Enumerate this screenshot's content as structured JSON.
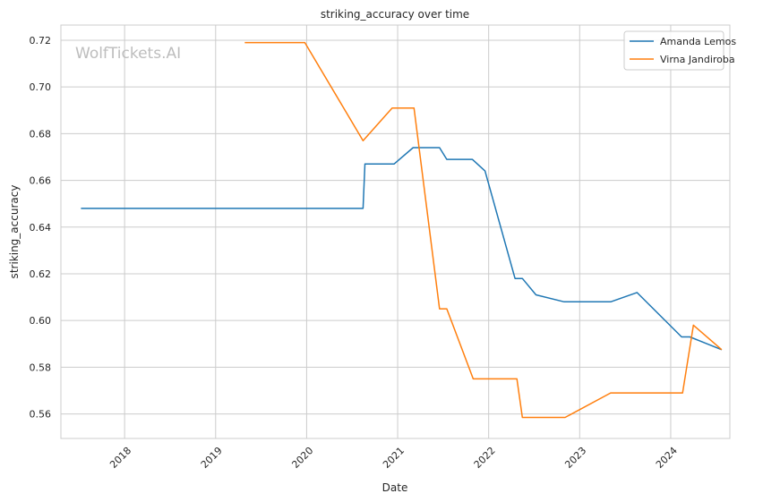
{
  "chart_data": {
    "type": "line",
    "title": "striking_accuracy over time",
    "xlabel": "Date",
    "ylabel": "striking_accuracy",
    "watermark": "WolfTickets.AI",
    "xlim": [
      2017.3,
      2024.65
    ],
    "ylim": [
      0.5495,
      0.7265
    ],
    "x_ticks": [
      2018,
      2019,
      2020,
      2021,
      2022,
      2023,
      2024
    ],
    "x_tick_labels": [
      "2018",
      "2019",
      "2020",
      "2021",
      "2022",
      "2023",
      "2024"
    ],
    "y_ticks": [
      0.56,
      0.58,
      0.6,
      0.62,
      0.64,
      0.66,
      0.68,
      0.7,
      0.72
    ],
    "y_tick_labels": [
      "0.56",
      "0.58",
      "0.60",
      "0.62",
      "0.64",
      "0.66",
      "0.68",
      "0.70",
      "0.72"
    ],
    "grid": true,
    "legend_position": "top-right",
    "series": [
      {
        "name": "Amanda Lemos",
        "color": "#1f77b4",
        "x": [
          2017.52,
          2020.62,
          2020.64,
          2020.96,
          2021.17,
          2021.46,
          2021.54,
          2021.82,
          2021.96,
          2022.29,
          2022.37,
          2022.52,
          2022.83,
          2023.34,
          2023.63,
          2024.12,
          2024.21,
          2024.56
        ],
        "y": [
          0.648,
          0.648,
          0.667,
          0.667,
          0.674,
          0.674,
          0.669,
          0.669,
          0.664,
          0.618,
          0.618,
          0.611,
          0.608,
          0.608,
          0.612,
          0.593,
          0.593,
          0.5875
        ]
      },
      {
        "name": "Virna Jandiroba",
        "color": "#ff7f0e",
        "x": [
          2019.32,
          2019.98,
          2020.62,
          2020.94,
          2021.18,
          2021.46,
          2021.54,
          2021.83,
          2022.31,
          2022.37,
          2022.84,
          2023.34,
          2024.13,
          2024.25,
          2024.56
        ],
        "y": [
          0.719,
          0.719,
          0.677,
          0.691,
          0.691,
          0.605,
          0.605,
          0.575,
          0.575,
          0.5585,
          0.5585,
          0.569,
          0.569,
          0.598,
          0.5875
        ]
      }
    ]
  }
}
